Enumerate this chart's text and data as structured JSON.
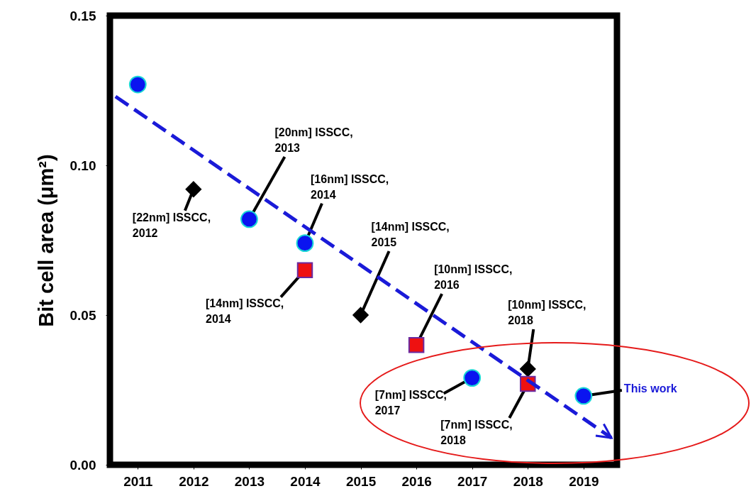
{
  "chart_data": {
    "type": "scatter",
    "ylabel": "Bit cell area (μm²)",
    "xlim": [
      2010.5,
      2019.6
    ],
    "xticks": [
      2011,
      2012,
      2013,
      2014,
      2015,
      2016,
      2017,
      2018,
      2019
    ],
    "ylim": [
      0,
      0.15
    ],
    "yticks": [
      {
        "value": 0,
        "label": "0.00"
      },
      {
        "value": 0.05,
        "label": "0.05"
      },
      {
        "value": 0.1,
        "label": "0.10"
      },
      {
        "value": 0.15,
        "label": "0.15"
      }
    ],
    "grid": false,
    "series": [
      {
        "marker": "circle",
        "color": "#0a14f0",
        "x": [
          2011,
          2013,
          2014,
          2017,
          2019
        ],
        "values": [
          0.127,
          0.082,
          0.074,
          0.029,
          0.023
        ]
      },
      {
        "marker": "diamond",
        "color": "#000000",
        "x": [
          2012,
          2015,
          2018
        ],
        "values": [
          0.092,
          0.05,
          0.032
        ]
      },
      {
        "marker": "square",
        "color": "#ee1111",
        "x": [
          2014,
          2016,
          2018
        ],
        "values": [
          0.065,
          0.04,
          0.027
        ]
      },
      {
        "type": "line",
        "line_style": "dashed",
        "color": "#1a1ad8",
        "x": [
          2010.6,
          2019.5
        ],
        "values": [
          0.123,
          0.009
        ]
      }
    ],
    "annotations": [
      {
        "text": "[22nm] ISSCC,\n2012",
        "x": 2012,
        "y": 0.092
      },
      {
        "text": "[20nm] ISSCC,\n2013",
        "x": 2013,
        "y": 0.082
      },
      {
        "text": "[16nm] ISSCC,\n2014",
        "x": 2014,
        "y": 0.074
      },
      {
        "text": "[14nm] ISSCC,\n2014",
        "x": 2014,
        "y": 0.065
      },
      {
        "text": "[14nm] ISSCC,\n2015",
        "x": 2015,
        "y": 0.05
      },
      {
        "text": "[10nm] ISSCC,\n2016",
        "x": 2016,
        "y": 0.04
      },
      {
        "text": "[7nm] ISSCC,\n2017",
        "x": 2017,
        "y": 0.029
      },
      {
        "text": "[10nm] ISSCC,\n2018",
        "x": 2018,
        "y": 0.032
      },
      {
        "text": "[7nm] ISSCC,\n2018",
        "x": 2018,
        "y": 0.027
      },
      {
        "text": "This work",
        "x": 2019,
        "y": 0.023
      }
    ]
  }
}
